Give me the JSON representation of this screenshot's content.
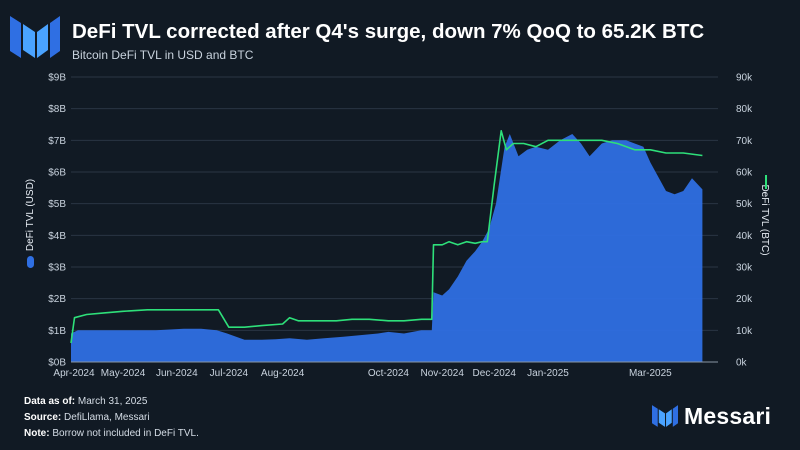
{
  "header": {
    "title": "DeFi TVL corrected after Q4's surge, down 7% QoQ to 65.2K BTC",
    "subtitle": "Bitcoin DeFi TVL in USD and BTC"
  },
  "footer": {
    "data_as_of_label": "Data as of:",
    "data_as_of_value": " March 31, 2025",
    "source_label": "Source:",
    "source_value": " DefiLlama, Messari",
    "note_label": "Note:",
    "note_value": " Borrow not included in DeFi TVL."
  },
  "brand": {
    "name": "Messari"
  },
  "colors": {
    "background": "#111a24",
    "usd_fill": "#2f6fe3",
    "btc_line": "#2ee07a"
  },
  "chart_data": {
    "type": "area",
    "x_ticks": [
      "Apr-2024",
      "May-2024",
      "Jun-2024",
      "Jul-2024",
      "Aug-2024",
      "Oct-2024",
      "Nov-2024",
      "Dec-2024",
      "Jan-2025",
      "Mar-2025"
    ],
    "y_left": {
      "label": "DeFi TVL (USD)",
      "ticks": [
        "$0B",
        "$1B",
        "$2B",
        "$3B",
        "$4B",
        "$5B",
        "$6B",
        "$7B",
        "$8B",
        "$9B"
      ],
      "range": [
        0,
        9
      ]
    },
    "y_right": {
      "label": "DeFi TVL (BTC)",
      "ticks": [
        "0k",
        "10k",
        "20k",
        "30k",
        "40k",
        "50k",
        "60k",
        "70k",
        "80k",
        "90k"
      ],
      "range": [
        0,
        90
      ]
    },
    "grid": true,
    "series": [
      {
        "name": "DeFi TVL (USD)",
        "kind": "area",
        "axis": "left",
        "unit": "$B",
        "x": [
          "2024-04-01",
          "2024-04-05",
          "2024-04-20",
          "2024-05-05",
          "2024-05-20",
          "2024-06-05",
          "2024-06-15",
          "2024-06-24",
          "2024-06-30",
          "2024-07-10",
          "2024-07-20",
          "2024-07-28",
          "2024-08-05",
          "2024-08-15",
          "2024-08-25",
          "2024-09-05",
          "2024-09-15",
          "2024-09-25",
          "2024-10-01",
          "2024-10-10",
          "2024-10-20",
          "2024-10-26",
          "2024-10-27",
          "2024-11-01",
          "2024-11-05",
          "2024-11-10",
          "2024-11-15",
          "2024-11-20",
          "2024-11-24",
          "2024-11-28",
          "2024-12-02",
          "2024-12-07",
          "2024-12-10",
          "2024-12-15",
          "2024-12-20",
          "2024-12-25",
          "2025-01-01",
          "2025-01-08",
          "2025-01-15",
          "2025-01-20",
          "2025-01-25",
          "2025-02-01",
          "2025-02-07",
          "2025-02-15",
          "2025-02-20",
          "2025-02-25",
          "2025-03-01",
          "2025-03-10",
          "2025-03-15",
          "2025-03-20",
          "2025-03-25",
          "2025-03-31"
        ],
        "values": [
          0.9,
          1.0,
          1.0,
          1.0,
          1.0,
          1.05,
          1.05,
          1.0,
          0.9,
          0.7,
          0.7,
          0.72,
          0.75,
          0.7,
          0.75,
          0.8,
          0.85,
          0.9,
          0.95,
          0.9,
          1.0,
          1.0,
          2.2,
          2.1,
          2.3,
          2.7,
          3.2,
          3.5,
          3.8,
          4.2,
          5.0,
          6.8,
          7.2,
          6.5,
          6.7,
          6.8,
          6.7,
          7.0,
          7.2,
          6.9,
          6.5,
          6.9,
          7.0,
          7.0,
          6.9,
          6.8,
          6.3,
          5.4,
          5.3,
          5.4,
          5.8,
          5.45
        ]
      },
      {
        "name": "DeFi TVL (BTC)",
        "kind": "line",
        "axis": "right",
        "unit": "k BTC",
        "x": [
          "2024-04-01",
          "2024-04-03",
          "2024-04-10",
          "2024-04-20",
          "2024-05-01",
          "2024-05-15",
          "2024-06-01",
          "2024-06-15",
          "2024-06-25",
          "2024-07-01",
          "2024-07-10",
          "2024-07-20",
          "2024-08-01",
          "2024-08-05",
          "2024-08-10",
          "2024-08-20",
          "2024-09-01",
          "2024-09-10",
          "2024-09-20",
          "2024-10-01",
          "2024-10-10",
          "2024-10-20",
          "2024-10-26",
          "2024-10-27",
          "2024-11-01",
          "2024-11-05",
          "2024-11-10",
          "2024-11-15",
          "2024-11-20",
          "2024-11-24",
          "2024-11-27",
          "2024-12-01",
          "2024-12-05",
          "2024-12-08",
          "2024-12-12",
          "2024-12-18",
          "2024-12-25",
          "2025-01-01",
          "2025-01-10",
          "2025-01-20",
          "2025-02-01",
          "2025-02-10",
          "2025-02-20",
          "2025-03-01",
          "2025-03-10",
          "2025-03-20",
          "2025-03-31"
        ],
        "values": [
          6,
          14,
          15,
          15.5,
          16,
          16.5,
          16.5,
          16.5,
          16.5,
          11,
          11,
          11.5,
          12,
          14,
          13,
          13,
          13,
          13.5,
          13.5,
          13,
          13,
          13.5,
          13.5,
          37,
          37,
          38,
          37,
          38,
          37.5,
          38,
          38,
          56,
          73,
          67,
          69,
          69,
          68,
          70,
          70,
          70,
          70,
          69,
          67,
          67,
          66,
          66,
          65.2
        ]
      }
    ]
  }
}
